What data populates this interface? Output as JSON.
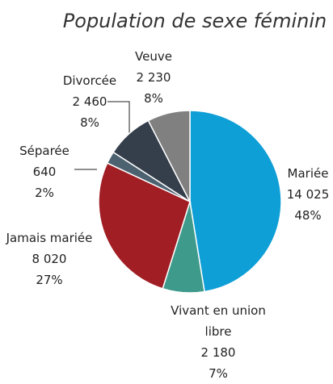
{
  "chart_data": {
    "type": "pie",
    "title": "Population de sexe féminin",
    "categories": [
      "Mariée",
      "Vivant en union libre",
      "Jamais mariée",
      "Séparée",
      "Divorcée",
      "Veuve"
    ],
    "values": [
      14025,
      2180,
      8020,
      640,
      2460,
      2230
    ],
    "value_labels": [
      "14 025",
      "2 180",
      "8 020",
      "640",
      "2 460",
      "2 230"
    ],
    "percent_labels": [
      "48%",
      "7%",
      "27%",
      "2%",
      "8%",
      "8%"
    ],
    "colors": [
      "#0e9fd6",
      "#3e9a8a",
      "#a01e24",
      "#4d6271",
      "#353e4b",
      "#808080"
    ]
  }
}
